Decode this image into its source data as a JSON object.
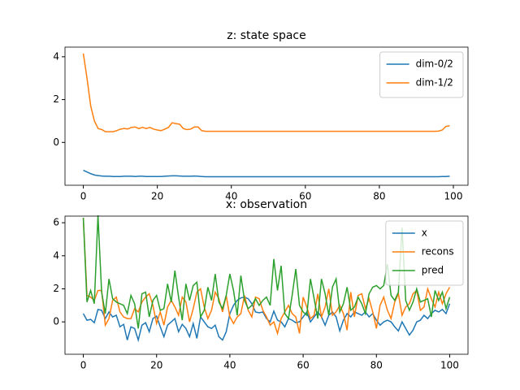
{
  "chart_data": [
    {
      "type": "line",
      "title": "z: state space",
      "x": [
        0,
        1,
        2,
        3,
        4,
        5,
        6,
        7,
        8,
        9,
        10,
        11,
        12,
        13,
        14,
        15,
        16,
        17,
        18,
        19,
        20,
        21,
        22,
        23,
        24,
        25,
        26,
        27,
        28,
        29,
        30,
        31,
        32,
        33,
        34,
        35,
        36,
        37,
        38,
        39,
        40,
        41,
        42,
        43,
        44,
        45,
        46,
        47,
        48,
        49,
        50,
        51,
        52,
        53,
        54,
        55,
        56,
        57,
        58,
        59,
        60,
        61,
        62,
        63,
        64,
        65,
        66,
        67,
        68,
        69,
        70,
        71,
        72,
        73,
        74,
        75,
        76,
        77,
        78,
        79,
        80,
        81,
        82,
        83,
        84,
        85,
        86,
        87,
        88,
        89,
        90,
        91,
        92,
        93,
        94,
        95,
        96,
        97,
        98,
        99
      ],
      "series": [
        {
          "name": "dim-0/2",
          "color": "#1f77b4",
          "values": [
            -1.3,
            -1.38,
            -1.46,
            -1.52,
            -1.55,
            -1.57,
            -1.58,
            -1.58,
            -1.59,
            -1.59,
            -1.59,
            -1.58,
            -1.58,
            -1.58,
            -1.59,
            -1.58,
            -1.58,
            -1.59,
            -1.59,
            -1.59,
            -1.59,
            -1.59,
            -1.58,
            -1.57,
            -1.56,
            -1.56,
            -1.57,
            -1.58,
            -1.58,
            -1.58,
            -1.57,
            -1.58,
            -1.59,
            -1.6,
            -1.6,
            -1.6,
            -1.6,
            -1.6,
            -1.6,
            -1.6,
            -1.6,
            -1.6,
            -1.6,
            -1.6,
            -1.6,
            -1.6,
            -1.6,
            -1.6,
            -1.6,
            -1.6,
            -1.6,
            -1.6,
            -1.6,
            -1.6,
            -1.6,
            -1.6,
            -1.6,
            -1.6,
            -1.6,
            -1.6,
            -1.6,
            -1.6,
            -1.6,
            -1.6,
            -1.6,
            -1.6,
            -1.6,
            -1.6,
            -1.6,
            -1.6,
            -1.6,
            -1.6,
            -1.6,
            -1.6,
            -1.6,
            -1.6,
            -1.6,
            -1.6,
            -1.6,
            -1.6,
            -1.6,
            -1.6,
            -1.6,
            -1.6,
            -1.6,
            -1.6,
            -1.6,
            -1.6,
            -1.6,
            -1.6,
            -1.6,
            -1.6,
            -1.6,
            -1.6,
            -1.6,
            -1.6,
            -1.6,
            -1.59,
            -1.59,
            -1.58
          ]
        },
        {
          "name": "dim-1/2",
          "color": "#ff7f0e",
          "values": [
            4.15,
            3.0,
            1.7,
            1.0,
            0.65,
            0.6,
            0.5,
            0.5,
            0.5,
            0.55,
            0.62,
            0.65,
            0.63,
            0.7,
            0.72,
            0.65,
            0.7,
            0.65,
            0.7,
            0.62,
            0.58,
            0.55,
            0.62,
            0.7,
            0.92,
            0.88,
            0.85,
            0.65,
            0.6,
            0.62,
            0.72,
            0.72,
            0.55,
            0.52,
            0.52,
            0.52,
            0.52,
            0.52,
            0.52,
            0.52,
            0.52,
            0.52,
            0.52,
            0.52,
            0.52,
            0.52,
            0.52,
            0.52,
            0.52,
            0.52,
            0.52,
            0.52,
            0.52,
            0.52,
            0.52,
            0.52,
            0.52,
            0.52,
            0.52,
            0.52,
            0.52,
            0.52,
            0.52,
            0.52,
            0.52,
            0.52,
            0.52,
            0.52,
            0.52,
            0.52,
            0.52,
            0.52,
            0.52,
            0.52,
            0.52,
            0.52,
            0.52,
            0.52,
            0.52,
            0.52,
            0.52,
            0.52,
            0.52,
            0.52,
            0.52,
            0.52,
            0.52,
            0.52,
            0.52,
            0.52,
            0.52,
            0.52,
            0.52,
            0.52,
            0.52,
            0.52,
            0.53,
            0.58,
            0.75,
            0.78
          ]
        }
      ],
      "xlim": [
        -4.95,
        103.95
      ],
      "xticks": [
        0,
        20,
        40,
        60,
        80,
        100
      ],
      "ylim": [
        -2.0,
        4.45
      ],
      "yticks": [
        0,
        2,
        4
      ],
      "legend": "upper-right"
    },
    {
      "type": "line",
      "title": "x: observation",
      "x": [
        0,
        1,
        2,
        3,
        4,
        5,
        6,
        7,
        8,
        9,
        10,
        11,
        12,
        13,
        14,
        15,
        16,
        17,
        18,
        19,
        20,
        21,
        22,
        23,
        24,
        25,
        26,
        27,
        28,
        29,
        30,
        31,
        32,
        33,
        34,
        35,
        36,
        37,
        38,
        39,
        40,
        41,
        42,
        43,
        44,
        45,
        46,
        47,
        48,
        49,
        50,
        51,
        52,
        53,
        54,
        55,
        56,
        57,
        58,
        59,
        60,
        61,
        62,
        63,
        64,
        65,
        66,
        67,
        68,
        69,
        70,
        71,
        72,
        73,
        74,
        75,
        76,
        77,
        78,
        79,
        80,
        81,
        82,
        83,
        84,
        85,
        86,
        87,
        88,
        89,
        90,
        91,
        92,
        93,
        94,
        95,
        96,
        97,
        98,
        99,
        100
      ],
      "series": [
        {
          "name": "x",
          "color": "#1f77b4",
          "values": [
            0.5,
            0.1,
            0.15,
            -0.05,
            0.75,
            0.7,
            0.2,
            0.6,
            0.3,
            0.4,
            -0.3,
            -0.15,
            -1.1,
            -0.3,
            -0.4,
            -1.1,
            -0.2,
            -0.05,
            -0.6,
            0.2,
            0.35,
            -0.3,
            -0.9,
            -0.2,
            0.0,
            0.2,
            -0.6,
            -0.15,
            -0.4,
            -0.9,
            -0.1,
            -1.0,
            0.3,
            0.0,
            -0.3,
            -0.4,
            -0.2,
            -0.9,
            -1.1,
            -0.6,
            0.5,
            1.0,
            1.3,
            1.45,
            1.5,
            1.4,
            1.1,
            0.6,
            0.55,
            0.6,
            0.2,
            0.0,
            0.65,
            0.1,
            0.0,
            -0.3,
            0.2,
            0.1,
            -0.05,
            0.0,
            0.3,
            0.6,
            0.0,
            0.3,
            0.6,
            0.3,
            -0.2,
            0.4,
            0.6,
            0.3,
            -0.55,
            0.1,
            0.5,
            0.3,
            0.6,
            0.5,
            0.4,
            0.6,
            0.3,
            0.5,
            0.1,
            -0.2,
            0.0,
            0.1,
            0.0,
            -0.3,
            -0.55,
            0.0,
            -0.4,
            -0.8,
            -0.5,
            0.0,
            0.1,
            0.4,
            0.2,
            0.5,
            0.7,
            0.6,
            0.75,
            0.5,
            1.1
          ]
        },
        {
          "name": "recons",
          "color": "#ff7f0e",
          "values": [
            6.3,
            1.6,
            1.5,
            1.3,
            1.9,
            1.9,
            -0.2,
            0.2,
            1.3,
            1.5,
            0.6,
            0.3,
            0.2,
            0.2,
            0.8,
            0.6,
            1.2,
            1.5,
            1.7,
            1.0,
            -0.1,
            0.6,
            -0.2,
            0.9,
            1.3,
            0.9,
            0.4,
            1.5,
            1.2,
            0.0,
            0.8,
            1.8,
            2.0,
            0.9,
            0.2,
            0.7,
            1.8,
            1.4,
            0.6,
            1.6,
            0.3,
            -0.1,
            0.3,
            0.5,
            1.6,
            0.7,
            0.3,
            1.5,
            1.4,
            0.7,
            0.3,
            -0.2,
            0.0,
            -0.7,
            0.2,
            0.6,
            1.0,
            0.5,
            0.3,
            -0.7,
            1.5,
            0.9,
            0.2,
            0.4,
            1.7,
            0.3,
            0.9,
            2.0,
            0.4,
            0.6,
            1.0,
            0.5,
            -0.5,
            1.8,
            0.3,
            1.6,
            1.7,
            0.8,
            1.4,
            0.6,
            -0.4,
            1.0,
            1.5,
            0.7,
            0.2,
            1.2,
            1.7,
            0.4,
            0.9,
            1.1,
            1.7,
            1.9,
            0.7,
            0.9,
            2.0,
            1.4,
            0.9,
            1.8,
            1.1,
            1.7,
            2.1
          ]
        },
        {
          "name": "pred",
          "color": "#2ca02c",
          "values": [
            6.3,
            1.2,
            1.9,
            1.1,
            6.45,
            1.8,
            0.5,
            2.6,
            1.4,
            1.2,
            1.1,
            1.0,
            0.5,
            1.6,
            1.1,
            -0.4,
            1.7,
            1.8,
            0.3,
            1.3,
            1.6,
            0.7,
            0.8,
            2.3,
            1.2,
            3.1,
            1.5,
            0.1,
            2.3,
            1.3,
            2.2,
            2.4,
            0.3,
            0.7,
            2.1,
            1.3,
            2.9,
            1.2,
            0.8,
            1.6,
            2.9,
            1.9,
            0.4,
            2.8,
            1.3,
            0.8,
            1.0,
            1.4,
            1.0,
            1.3,
            1.5,
            1.0,
            3.8,
            1.9,
            3.4,
            0.5,
            0.2,
            1.6,
            3.2,
            1.0,
            0.6,
            0.4,
            2.6,
            1.4,
            0.2,
            2.6,
            1.7,
            0.4,
            2.1,
            2.6,
            0.6,
            1.1,
            2.1,
            0.7,
            0.9,
            1.5,
            1.1,
            0.5,
            1.7,
            2.1,
            2.2,
            2.0,
            2.2,
            3.5,
            1.6,
            1.3,
            1.8,
            5.7,
            1.3,
            0.7,
            1.2,
            2.0,
            1.2,
            1.3,
            1.4,
            0.3,
            1.9,
            1.3,
            1.8,
            0.8,
            1.5
          ]
        }
      ],
      "xlim": [
        -5,
        105
      ],
      "xticks": [
        0,
        20,
        40,
        60,
        80,
        100
      ],
      "ylim": [
        -1.96,
        6.4
      ],
      "yticks": [
        0,
        2,
        4,
        6
      ],
      "legend": "upper-right"
    }
  ]
}
